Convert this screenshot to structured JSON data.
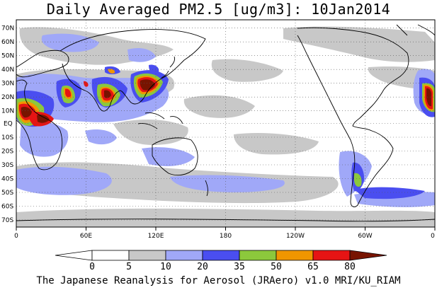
{
  "title": "Daily Averaged PM2.5 [ug/m3]: 10Jan2014",
  "footer": "The Japanese Reanalysis for Aerosol (JRAero) v1.0 MRI/KU_RIAM",
  "map": {
    "projection": "equirectangular",
    "lon_range": [
      0,
      360
    ],
    "lat_range": [
      -75,
      75
    ],
    "grid": "dotted every 10 degrees",
    "lat_labels": [
      "70N",
      "60N",
      "50N",
      "40N",
      "30N",
      "20N",
      "10N",
      "EQ",
      "10S",
      "20S",
      "30S",
      "40S",
      "50S",
      "60S",
      "70S"
    ],
    "lon_labels": [
      "0",
      "60E",
      "120E",
      "180",
      "120W",
      "60W",
      "0"
    ]
  },
  "colorbar": {
    "tick_labels": [
      "0",
      "5",
      "10",
      "20",
      "35",
      "50",
      "65",
      "80"
    ],
    "colors": [
      "#ffffff",
      "#c8c8c8",
      "#a0a8f8",
      "#4a4ef0",
      "#8cc83c",
      "#f09600",
      "#e61414",
      "#781400"
    ]
  }
}
